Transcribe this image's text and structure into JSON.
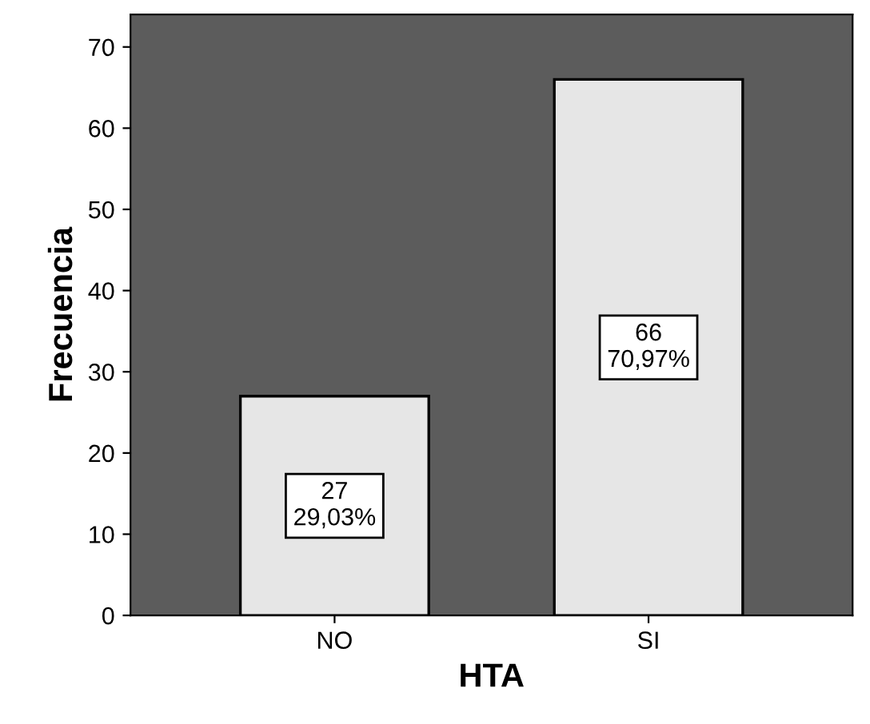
{
  "chart_data": {
    "type": "bar",
    "xlabel": "HTA",
    "ylabel": "Frecuencia",
    "categories": [
      "NO",
      "SI"
    ],
    "values": [
      27,
      66
    ],
    "color": "#e6e6e6",
    "value_labels": [
      "27\n29,03%",
      "66\n70,97%"
    ],
    "ylim": [
      0,
      74
    ],
    "yticks": [
      0,
      10,
      20,
      30,
      40,
      50,
      60,
      70
    ],
    "grid": false
  }
}
